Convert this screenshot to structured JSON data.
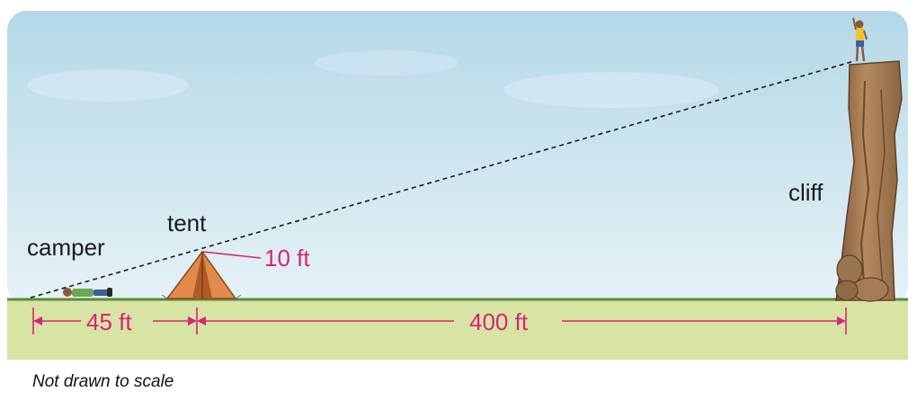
{
  "labels": {
    "camper": "camper",
    "tent": "tent",
    "cliff": "cliff"
  },
  "measurements": {
    "tent_height": "10 ft",
    "camper_to_tent": "45 ft",
    "tent_to_cliff": "400 ft"
  },
  "note": "Not drawn to scale",
  "colors": {
    "sky_top": "#b9dbe9",
    "sky_bottom": "#e4f1f5",
    "grass": "#d5e3a2",
    "measure": "#d6257a",
    "sight_line": "#1a1a1a",
    "tent": "#e08a4c",
    "cliff": "#a57a52"
  }
}
